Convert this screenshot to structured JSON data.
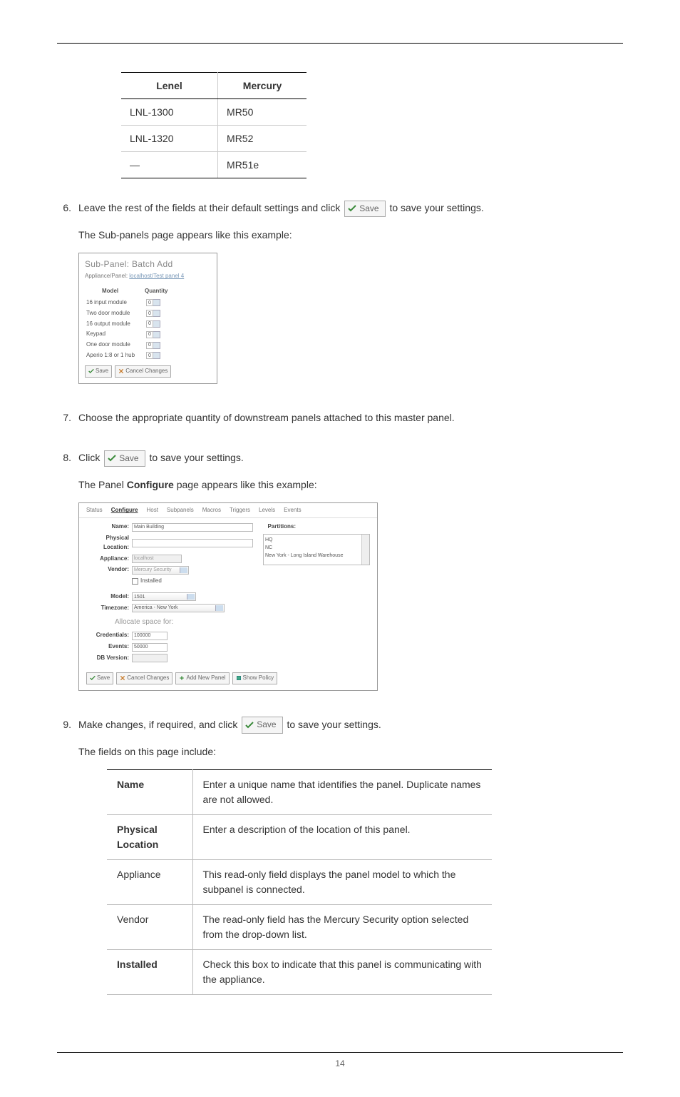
{
  "pageNumber": "14",
  "compareTable": {
    "headers": {
      "left": "Lenel",
      "right": "Mercury"
    },
    "rows": [
      {
        "l": "LNL-1300",
        "r": "MR50"
      },
      {
        "l": "LNL-1320",
        "r": "MR52"
      },
      {
        "l": "—",
        "r": "MR51e"
      }
    ]
  },
  "saveLabel": "Save",
  "cancelLabel": "Cancel Changes",
  "addNewLabel": "Add New Panel",
  "showPolicyLabel": "Show Policy",
  "steps": {
    "s6": {
      "num": "6.",
      "text1a": "Leave the rest of the fields at their default settings and click ",
      "text1b": " to save your settings.",
      "text2": "The Sub-panels page appears like this example:"
    },
    "s7": {
      "num": "7.",
      "text": "Choose the appropriate quantity of downstream panels attached to this master panel."
    },
    "s8": {
      "num": "8.",
      "text1a": "Click ",
      "text1b": " to save your settings.",
      "text2a": "The Panel ",
      "text2b": "Configure",
      "text2c": " page appears like this example:"
    },
    "s9": {
      "num": "9.",
      "text1a": "Make changes, if required, and click ",
      "text1b": " to save your settings.",
      "text2": "The fields on this page include:"
    }
  },
  "fig1": {
    "title": "Sub-Panel: Batch Add",
    "subLabel": "Appliance/Panel:",
    "subLink": "localhost/Test panel 4",
    "hModel": "Model",
    "hQty": "Quantity",
    "rows": [
      "16 input module",
      "Two door module",
      "16 output module",
      "Keypad",
      "One door module",
      "Aperio 1:8 or 1 hub"
    ],
    "qty": "0"
  },
  "fig2": {
    "tabs": [
      "Status",
      "Configure",
      "Host",
      "Subpanels",
      "Macros",
      "Triggers",
      "Levels",
      "Events"
    ],
    "activeTab": 1,
    "fields": {
      "name": {
        "label": "Name:",
        "value": "Main Building"
      },
      "loc": {
        "label": "Physical Location:",
        "value": ""
      },
      "app": {
        "label": "Appliance:",
        "value": "localhost"
      },
      "vendor": {
        "label": "Vendor:",
        "value": "Mercury Security"
      },
      "installed": {
        "label": "Installed"
      },
      "model": {
        "label": "Model:",
        "value": "1501"
      },
      "tz": {
        "label": "Timezone:",
        "value": "America - New York"
      },
      "cred": {
        "label": "Credentials:",
        "value": "100000"
      },
      "events": {
        "label": "Events:",
        "value": "50000"
      },
      "db": {
        "label": "DB Version:",
        "value": ""
      }
    },
    "secTitle": "Allocate space for:",
    "partLabel": "Partitions:",
    "partitions": [
      "HQ",
      "NC",
      "New York - Long Island Warehouse"
    ]
  },
  "fieldsTable": [
    {
      "name": "Name",
      "bold": true,
      "desc": "Enter a unique name that identifies the panel. Duplicate names are not allowed."
    },
    {
      "name": "Physical Location",
      "bold": true,
      "desc": "Enter a description of the location of this panel."
    },
    {
      "name": "Appliance",
      "bold": false,
      "desc": "This read-only field displays the panel model to which the subpanel is connected."
    },
    {
      "name": "Vendor",
      "bold": false,
      "desc": "The read-only field has the Mercury Security option selected from the drop-down list."
    },
    {
      "name": "Installed",
      "bold": true,
      "desc": "Check this box to indicate that this panel is communicating with the appliance."
    }
  ]
}
